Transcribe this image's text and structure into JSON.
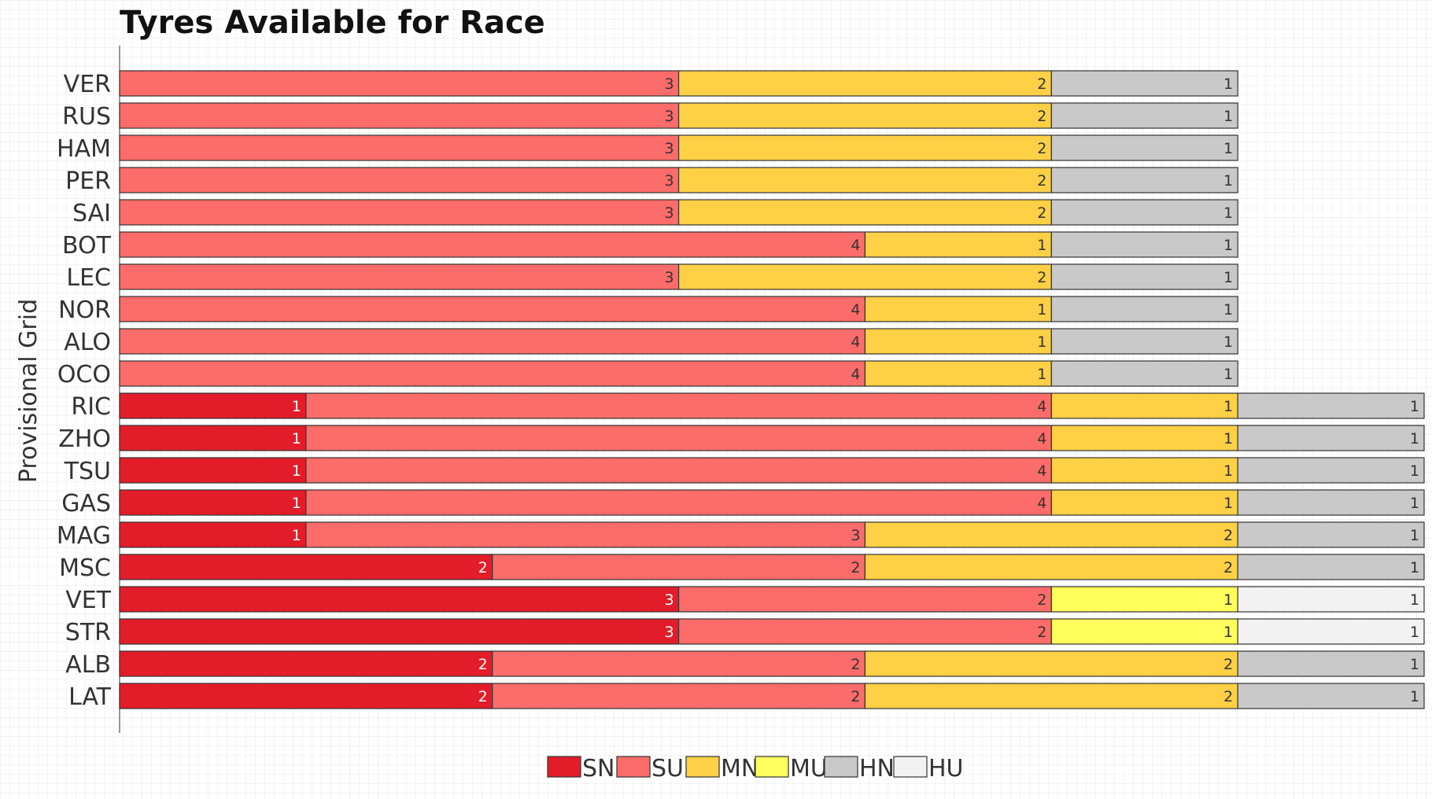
{
  "chart_data": {
    "type": "bar",
    "orientation": "horizontal",
    "stacked": true,
    "title": "Tyres Available for Race",
    "ylabel": "Provisional Grid",
    "xlabel": "",
    "xlim": [
      0,
      7
    ],
    "grid": true,
    "legend_position": "bottom-center",
    "categories": [
      "VER",
      "RUS",
      "HAM",
      "PER",
      "SAI",
      "BOT",
      "LEC",
      "NOR",
      "ALO",
      "OCO",
      "RIC",
      "ZHO",
      "TSU",
      "GAS",
      "MAG",
      "MSC",
      "VET",
      "STR",
      "ALB",
      "LAT"
    ],
    "series": [
      {
        "name": "SN",
        "color": "#e31c2a",
        "label_color": "#ffffff",
        "values": [
          0,
          0,
          0,
          0,
          0,
          0,
          0,
          0,
          0,
          0,
          1,
          1,
          1,
          1,
          1,
          2,
          3,
          3,
          2,
          2
        ]
      },
      {
        "name": "SU",
        "color": "#fc6c6a",
        "label_color": "#333333",
        "values": [
          3,
          3,
          3,
          3,
          3,
          4,
          3,
          4,
          4,
          4,
          4,
          4,
          4,
          4,
          3,
          2,
          2,
          2,
          2,
          2
        ]
      },
      {
        "name": "MN",
        "color": "#fed045",
        "label_color": "#333333",
        "values": [
          2,
          2,
          2,
          2,
          2,
          1,
          2,
          1,
          1,
          1,
          1,
          1,
          1,
          1,
          2,
          2,
          0,
          0,
          2,
          2
        ]
      },
      {
        "name": "MU",
        "color": "#fefe5c",
        "label_color": "#333333",
        "values": [
          0,
          0,
          0,
          0,
          0,
          0,
          0,
          0,
          0,
          0,
          0,
          0,
          0,
          0,
          0,
          0,
          1,
          1,
          0,
          0
        ]
      },
      {
        "name": "HN",
        "color": "#c9c9c9",
        "label_color": "#333333",
        "values": [
          1,
          1,
          1,
          1,
          1,
          1,
          1,
          1,
          1,
          1,
          1,
          1,
          1,
          1,
          1,
          1,
          0,
          0,
          1,
          1
        ]
      },
      {
        "name": "HU",
        "color": "#f2f2f2",
        "label_color": "#333333",
        "values": [
          0,
          0,
          0,
          0,
          0,
          0,
          0,
          0,
          0,
          0,
          0,
          0,
          0,
          0,
          0,
          0,
          1,
          1,
          0,
          0
        ]
      }
    ]
  }
}
